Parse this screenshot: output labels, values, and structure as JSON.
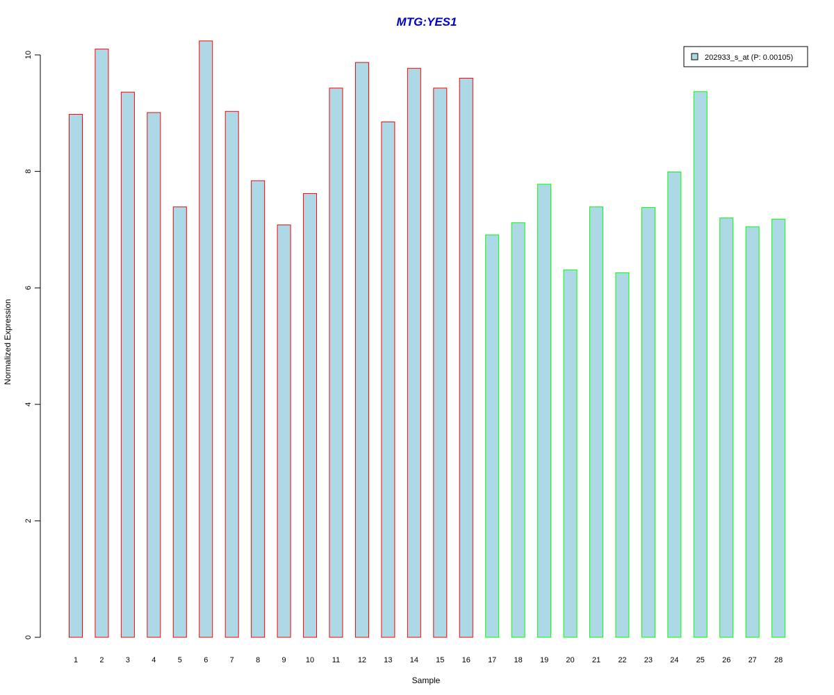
{
  "chart_data": {
    "type": "bar",
    "title": "MTG:YES1",
    "xlabel": "Sample",
    "ylabel": "Normalized Expression",
    "categories": [
      "1",
      "2",
      "3",
      "4",
      "5",
      "6",
      "7",
      "8",
      "9",
      "10",
      "11",
      "12",
      "13",
      "14",
      "15",
      "16",
      "17",
      "18",
      "19",
      "20",
      "21",
      "22",
      "23",
      "24",
      "25",
      "26",
      "27",
      "28"
    ],
    "values": [
      8.98,
      10.1,
      9.36,
      9.01,
      7.39,
      10.24,
      9.03,
      7.84,
      7.08,
      7.62,
      9.43,
      9.87,
      8.85,
      9.77,
      9.43,
      9.6,
      6.91,
      7.12,
      7.78,
      6.31,
      7.39,
      6.26,
      7.38,
      7.99,
      9.37,
      7.2,
      7.05,
      7.18
    ],
    "groups": [
      1,
      1,
      1,
      1,
      1,
      1,
      1,
      1,
      1,
      1,
      1,
      1,
      1,
      1,
      1,
      1,
      2,
      2,
      2,
      2,
      2,
      2,
      2,
      2,
      2,
      2,
      2,
      2
    ],
    "ylim": [
      0,
      10.5
    ],
    "yticks": [
      0,
      2,
      4,
      6,
      8,
      10
    ],
    "grid": false,
    "legend": {
      "placement": "top-right",
      "entries": [
        {
          "label": "202933_s_at (P: 0.00105)",
          "color": "#add8e6"
        }
      ]
    },
    "colors": {
      "bar_fill": "#add8e6",
      "group1_border": "#ff0000",
      "group2_border": "#00ff00",
      "title": "#0000cc"
    }
  }
}
